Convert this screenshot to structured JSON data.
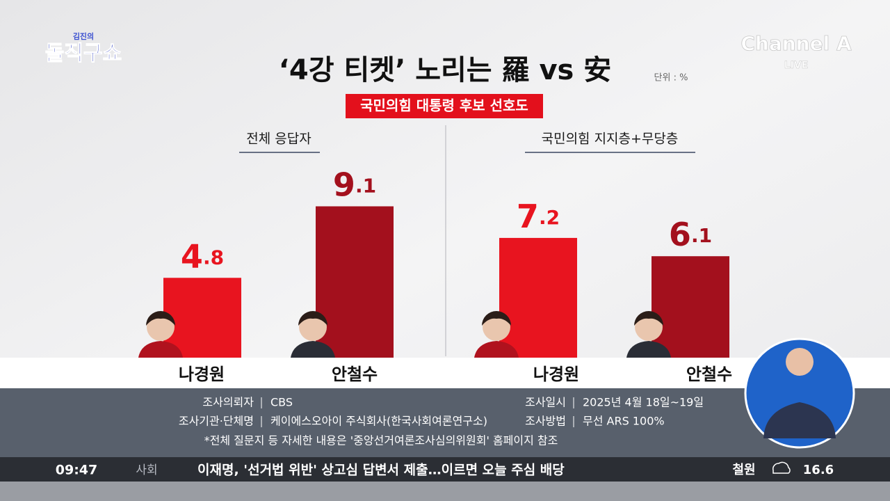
{
  "brand": {
    "show_small": "김진의",
    "show": "돌직구쇼",
    "channel": "Channel A",
    "live": "LIVE"
  },
  "header": {
    "title": "‘4강 티켓’ 노리는 羅 vs 安",
    "unit": "단위 : %",
    "badge": "국민의힘 대통령 후보 선호도"
  },
  "chart_data": [
    {
      "type": "bar",
      "subtitle": "전체 응답자",
      "categories": [
        "나경원",
        "안철수"
      ],
      "values": [
        4.8,
        9.1
      ],
      "colors": [
        "#e8141f",
        "#a3101d"
      ]
    },
    {
      "type": "bar",
      "subtitle": "국민의힘 지지층+무당층",
      "categories": [
        "나경원",
        "안철수"
      ],
      "values": [
        7.2,
        6.1
      ],
      "colors": [
        "#e8141f",
        "#a3101d"
      ]
    }
  ],
  "survey": {
    "left": [
      [
        "조사의뢰자",
        "CBS"
      ],
      [
        "조사기관·단체명",
        "케이에스오아이 주식회사(한국사회여론연구소)"
      ]
    ],
    "right": [
      [
        "조사일시",
        "2025년 4월 18일~19일"
      ],
      [
        "조사방법",
        "무선 ARS 100%"
      ]
    ],
    "note": "*전체 질문지 등 자세한 내용은 '중앙선거여론조사심의위원회' 홈페이지 참조"
  },
  "ticker": {
    "time": "09:47",
    "section": "사회",
    "headline": "이재명, '선거법 위반' 상고심 답변서 제출…이르면 오늘 주심 배당",
    "city": "철원",
    "temp": "16.6"
  }
}
